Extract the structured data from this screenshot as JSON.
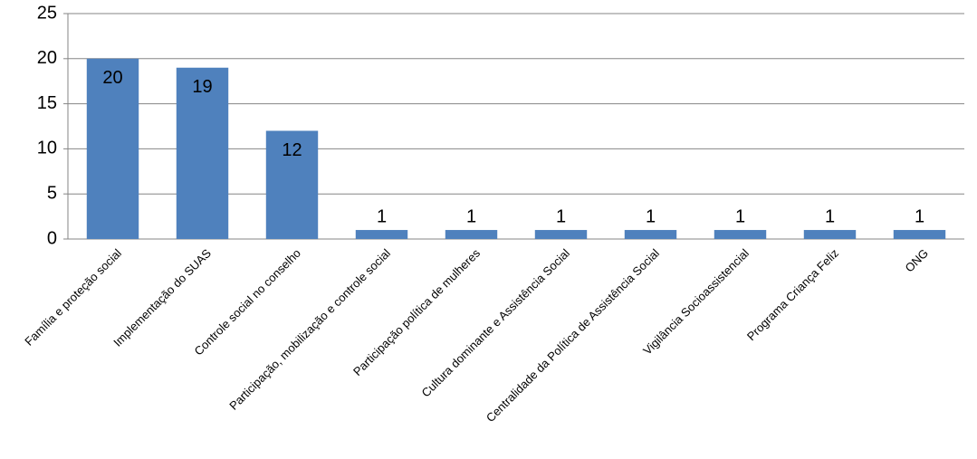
{
  "chart_data": {
    "type": "bar",
    "categories": [
      "Família e proteção social",
      "Implementação do SUAS",
      "Controle social no conselho",
      "Participação, mobilização e controle social",
      "Participação política de mulheres",
      "Cultura dominante e Assistência Social",
      "Centralidade da Política de Assistência Social",
      "Vigilância Socioassistencial",
      "Programa Criança Feliz",
      "ONG"
    ],
    "values": [
      20,
      19,
      12,
      1,
      1,
      1,
      1,
      1,
      1,
      1
    ],
    "color": "#4f81bd",
    "ylim": [
      0,
      25
    ],
    "yticks": [
      0,
      5,
      10,
      15,
      20,
      25
    ],
    "grid": true
  }
}
